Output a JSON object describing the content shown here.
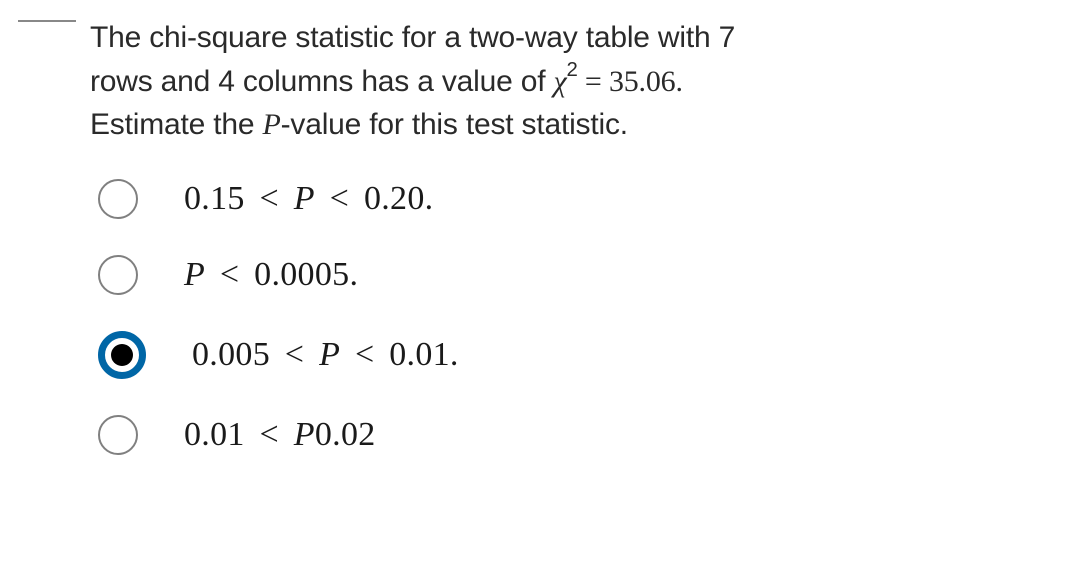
{
  "question": {
    "line1_part1": "The chi-square statistic for a two-way table with 7",
    "line2_part1": "rows and 4 columns has a value of ",
    "chi_symbol": "χ",
    "exponent": "2",
    "equals": " = ",
    "value": "35.06.",
    "line3": "Estimate the ",
    "p_symbol": "P",
    "line3_cont": "-value for this test statistic."
  },
  "options": [
    {
      "id": "opt1",
      "pre": "0.15",
      "lt1": " < ",
      "mid": "P",
      "lt2": " < ",
      "post": "0.20.",
      "selected": false
    },
    {
      "id": "opt2",
      "pre": "",
      "lt1": "",
      "mid": "P",
      "lt2": " < ",
      "post": "0.0005.",
      "selected": false
    },
    {
      "id": "opt3",
      "pre": "0.005",
      "lt1": " < ",
      "mid": "P",
      "lt2": " < ",
      "post": "0.01.",
      "selected": true
    },
    {
      "id": "opt4",
      "pre": "0.01",
      "lt1": " < ",
      "mid": "P",
      "lt2": "",
      "post": "0.02",
      "selected": false
    }
  ],
  "styling": {
    "text_color": "#1a1a1a",
    "question_fontsize": 30,
    "option_fontsize": 34,
    "radio_border_color": "#808080",
    "radio_selected_color": "#0066a6",
    "background_color": "#ffffff"
  }
}
